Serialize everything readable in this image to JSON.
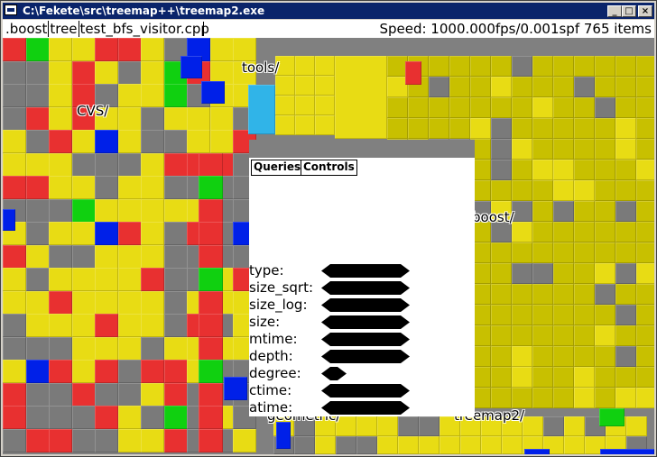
{
  "window": {
    "title": "C:\\Fekete\\src\\treemap++\\treemap2.exe",
    "controls": {
      "minimize": "_",
      "maximize": "□",
      "close": "×"
    }
  },
  "infobar": {
    "path_segments": [
      ".boost",
      "tree",
      "test_bfs_visitor.cpp"
    ],
    "status": "Speed: 1000.000fps/0.001spf 765 items"
  },
  "treemap": {
    "labels": {
      "tools": "tools/",
      "cvs": "CVS/",
      "boost": "boost/",
      "geometric": "geometric/",
      "treemap2": "treemap2/"
    },
    "colors": {
      "yellow": "#e8dc14",
      "olive": "#c8c000",
      "gray": "#7a7a7a",
      "red": "#e83030",
      "blue": "#0020e8",
      "green": "#10d010",
      "cyan": "#30b4e8"
    }
  },
  "panel": {
    "tabs": [
      "Queries",
      "Controls"
    ],
    "properties": [
      {
        "label": "type:",
        "value_width": "long"
      },
      {
        "label": "size_sqrt:",
        "value_width": "long"
      },
      {
        "label": "size_log:",
        "value_width": "long"
      },
      {
        "label": "size:",
        "value_width": "long"
      },
      {
        "label": "mtime:",
        "value_width": "long"
      },
      {
        "label": "depth:",
        "value_width": "long"
      },
      {
        "label": "degree:",
        "value_width": "short"
      },
      {
        "label": "ctime:",
        "value_width": "long"
      },
      {
        "label": "atime:",
        "value_width": "long"
      }
    ]
  }
}
